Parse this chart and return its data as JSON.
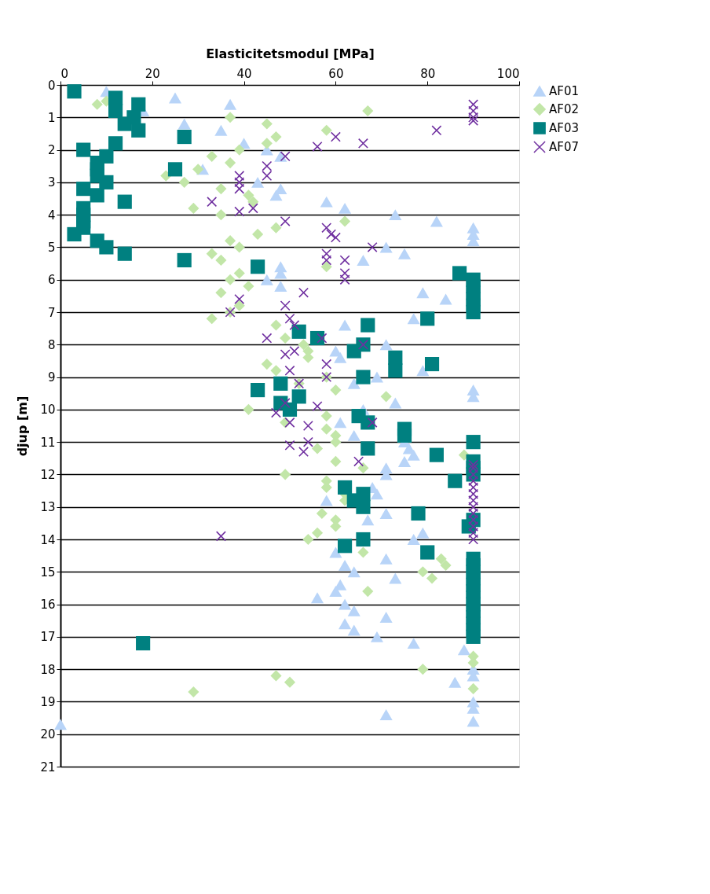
{
  "chart_data": {
    "type": "scatter",
    "xlabel": "Elasticitetsmodul [MPa]",
    "ylabel": "djup [m]",
    "xlim": [
      0,
      100
    ],
    "xticks": [
      0,
      20,
      40,
      60,
      80,
      100
    ],
    "ylim": [
      21,
      0
    ],
    "yticks": [
      0,
      1,
      2,
      3,
      4,
      5,
      6,
      7,
      8,
      9,
      10,
      11,
      12,
      13,
      14,
      15,
      16,
      17,
      18,
      19,
      20,
      21
    ],
    "grid": "y",
    "legend": "right",
    "series": [
      {
        "name": "AF01",
        "color": "#b8d4f8",
        "marker": "triangle",
        "x": [
          10,
          25,
          37,
          18,
          27,
          35,
          40,
          45,
          48,
          31,
          43,
          48,
          47,
          58,
          62,
          73,
          82,
          90,
          90,
          90,
          71,
          75,
          66,
          48,
          48,
          45,
          48,
          79,
          84,
          77,
          62,
          71,
          60,
          61,
          79,
          69,
          64,
          90,
          90,
          73,
          66,
          61,
          64,
          75,
          76,
          77,
          75,
          71,
          71,
          68,
          69,
          58,
          71,
          67,
          79,
          77,
          71,
          60,
          62,
          64,
          73,
          61,
          60,
          56,
          62,
          64,
          71,
          62,
          64,
          69,
          77,
          88,
          null,
          90,
          90,
          86,
          null,
          90,
          90,
          71,
          90,
          0
        ],
        "values": [
          0.2,
          0.4,
          0.6,
          0.8,
          1.2,
          1.4,
          1.8,
          2.0,
          2.2,
          2.6,
          3.0,
          3.2,
          3.4,
          3.6,
          3.8,
          4.0,
          4.2,
          4.4,
          4.6,
          4.8,
          5.0,
          5.2,
          5.4,
          5.6,
          5.8,
          6.0,
          6.2,
          6.4,
          6.6,
          7.2,
          7.4,
          8.0,
          8.2,
          8.4,
          8.8,
          9.0,
          9.2,
          9.4,
          9.6,
          9.8,
          10.0,
          10.4,
          10.8,
          11.0,
          11.2,
          11.4,
          11.6,
          11.8,
          12.0,
          12.4,
          12.6,
          12.8,
          13.2,
          13.4,
          13.8,
          14.0,
          14.6,
          14.4,
          14.8,
          15.0,
          15.2,
          15.4,
          15.6,
          15.8,
          16.0,
          16.2,
          16.4,
          16.6,
          16.8,
          17.0,
          17.2,
          17.4,
          null,
          18.0,
          18.2,
          18.4,
          null,
          19.0,
          19.2,
          19.4,
          19.6,
          19.7
        ]
      },
      {
        "name": "AF02",
        "color": "#c2e6a8",
        "marker": "diamond",
        "x": [
          8,
          10,
          37,
          67,
          45,
          58,
          47,
          45,
          39,
          33,
          37,
          30,
          23,
          27,
          35,
          41,
          42,
          29,
          35,
          62,
          47,
          43,
          37,
          39,
          33,
          35,
          58,
          39,
          37,
          41,
          35,
          39,
          37,
          33,
          47,
          49,
          53,
          54,
          54,
          45,
          47,
          58,
          52,
          60,
          71,
          41,
          58,
          49,
          58,
          60,
          60,
          56,
          88,
          60,
          66,
          49,
          58,
          58,
          62,
          62,
          57,
          60,
          60,
          56,
          54,
          66,
          83,
          84,
          79,
          81,
          67,
          90,
          90,
          79,
          47,
          50,
          90,
          29
        ],
        "values": [
          0.6,
          0.5,
          1.0,
          0.8,
          1.2,
          1.4,
          1.6,
          1.8,
          2.0,
          2.2,
          2.4,
          2.6,
          2.8,
          3.0,
          3.2,
          3.4,
          3.6,
          3.8,
          4.0,
          4.2,
          4.4,
          4.6,
          4.8,
          5.0,
          5.2,
          5.4,
          5.6,
          5.8,
          6.0,
          6.2,
          6.4,
          6.8,
          7.0,
          7.2,
          7.4,
          7.8,
          8.0,
          8.2,
          8.4,
          8.6,
          8.8,
          9.0,
          9.2,
          9.4,
          9.6,
          10.0,
          10.2,
          10.4,
          10.6,
          10.8,
          11.0,
          11.2,
          11.4,
          11.6,
          11.8,
          12.0,
          12.2,
          12.4,
          12.6,
          12.8,
          13.2,
          13.4,
          13.6,
          13.8,
          14.0,
          14.4,
          14.6,
          14.8,
          15.0,
          15.2,
          15.6,
          17.6,
          17.8,
          18.0,
          18.2,
          18.4,
          18.6,
          18.7
        ]
      },
      {
        "name": "AF03",
        "color": "#008080",
        "marker": "square",
        "x": [
          3,
          12,
          17,
          12,
          16,
          14,
          17,
          27,
          12,
          5,
          10,
          8,
          8,
          25,
          8,
          10,
          5,
          8,
          14,
          5,
          5,
          5,
          5,
          3,
          8,
          10,
          14,
          27,
          43,
          87,
          90,
          90,
          90,
          90,
          90,
          90,
          80,
          67,
          52,
          56,
          66,
          64,
          73,
          81,
          73,
          66,
          48,
          43,
          52,
          48,
          50,
          65,
          67,
          75,
          75,
          90,
          67,
          82,
          90,
          90,
          90,
          86,
          62,
          66,
          64,
          66,
          78,
          90,
          89,
          66,
          62,
          80,
          90,
          90,
          90,
          90,
          90,
          90,
          90,
          90,
          90,
          90,
          90,
          90,
          90,
          18
        ],
        "values": [
          0.2,
          0.4,
          0.6,
          0.8,
          1.0,
          1.2,
          1.4,
          1.6,
          1.8,
          2.0,
          2.2,
          2.4,
          2.6,
          2.6,
          2.8,
          3.0,
          3.2,
          3.4,
          3.6,
          3.8,
          4.0,
          4.2,
          4.4,
          4.6,
          4.8,
          5.0,
          5.2,
          5.4,
          5.6,
          5.8,
          6.0,
          6.2,
          6.4,
          6.6,
          6.8,
          7.0,
          7.2,
          7.4,
          7.6,
          7.8,
          8.0,
          8.2,
          8.4,
          8.6,
          8.8,
          9.0,
          9.2,
          9.4,
          9.6,
          9.8,
          10.0,
          10.2,
          10.4,
          10.6,
          10.8,
          11.0,
          11.2,
          11.4,
          11.6,
          11.8,
          12.0,
          12.2,
          12.4,
          12.6,
          12.8,
          13.0,
          13.2,
          13.4,
          13.6,
          14.0,
          14.2,
          14.4,
          14.6,
          14.8,
          15.0,
          15.2,
          15.4,
          15.6,
          15.8,
          16.0,
          16.2,
          16.4,
          16.6,
          16.8,
          17.0,
          17.2
        ]
      },
      {
        "name": "AF07",
        "color": "#7030a0",
        "marker": "cross",
        "x": [
          90,
          90,
          90,
          90,
          82,
          60,
          66,
          56,
          49,
          45,
          45,
          39,
          39,
          39,
          33,
          42,
          39,
          49,
          58,
          59,
          60,
          68,
          58,
          62,
          58,
          62,
          62,
          53,
          39,
          49,
          37,
          50,
          51,
          45,
          57,
          66,
          51,
          49,
          58,
          50,
          58,
          52,
          49,
          56,
          47,
          50,
          54,
          68,
          54,
          50,
          53,
          65,
          90,
          90,
          90,
          90,
          90,
          90,
          90,
          90,
          90,
          90,
          90,
          90,
          90,
          35
        ],
        "values": [
          0.6,
          0.8,
          1.0,
          1.1,
          1.4,
          1.6,
          1.8,
          1.9,
          2.2,
          2.5,
          2.8,
          2.8,
          3.0,
          3.2,
          3.6,
          3.8,
          3.9,
          4.2,
          4.4,
          4.6,
          4.7,
          5.0,
          5.2,
          5.4,
          5.4,
          5.8,
          6.0,
          6.4,
          6.6,
          6.8,
          7.0,
          7.2,
          7.4,
          7.8,
          7.8,
          8.0,
          8.2,
          8.3,
          8.6,
          8.8,
          9.0,
          9.2,
          9.8,
          9.9,
          10.1,
          10.4,
          10.5,
          10.4,
          11.0,
          11.1,
          11.3,
          11.6,
          11.7,
          11.8,
          12.0,
          12.2,
          12.4,
          12.6,
          12.8,
          13.0,
          13.2,
          13.4,
          13.6,
          13.8,
          14.0,
          13.9
        ]
      }
    ]
  }
}
